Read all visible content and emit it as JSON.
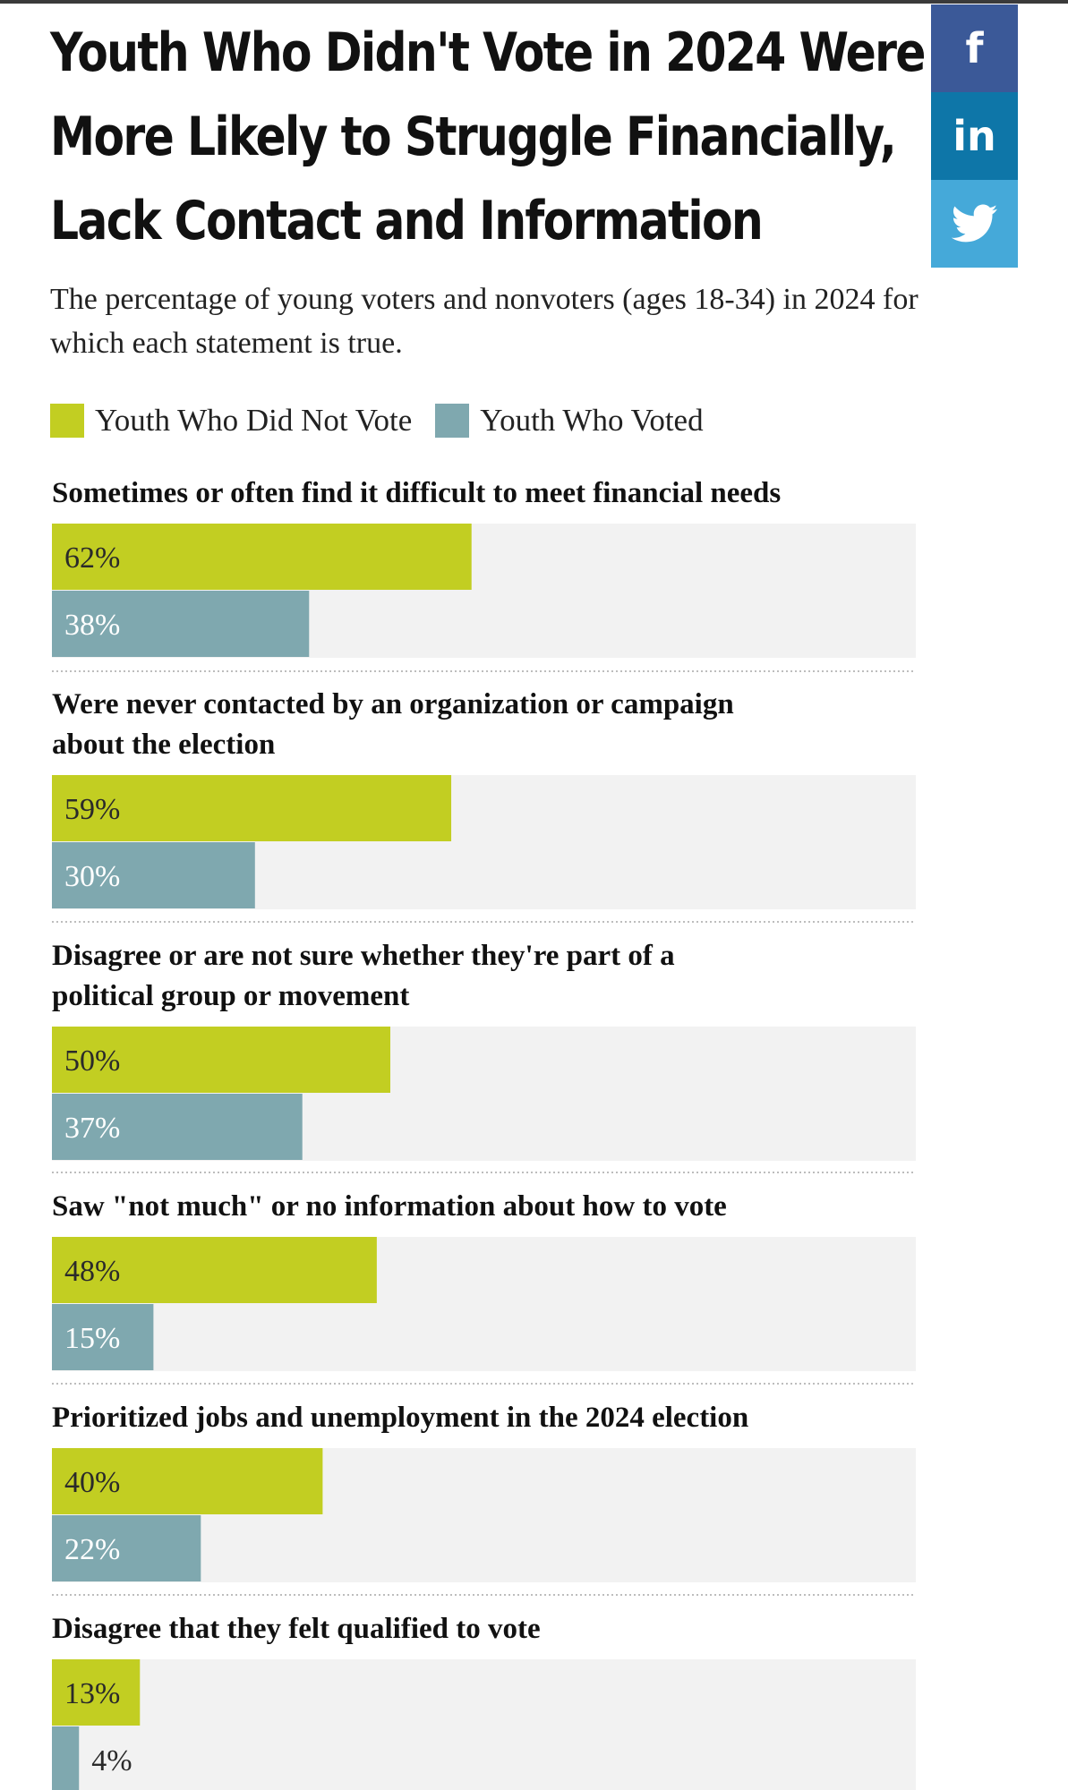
{
  "title": "Youth Who Didn't Vote in 2024 Were More Likely to Struggle Financially, Lack Contact and Information",
  "subtitle": "The percentage of young voters and nonvoters (ages 18-34) in 2024 for which each statement is true.",
  "colors": {
    "nonvoter": "#c2ce22",
    "voter": "#7fa8af",
    "track": "#f2f2f2",
    "divider": "#bdbdbd"
  },
  "social": {
    "facebook_glyph": "f",
    "linkedin_glyph": "in",
    "twitter_icon": "twitter-bird-icon"
  },
  "chart_data": {
    "type": "bar",
    "orientation": "horizontal",
    "title": "Youth Who Didn't Vote in 2024 Were More Likely to Struggle Financially, Lack Contact and Information",
    "subtitle": "The percentage of young voters and nonvoters (ages 18-34) in 2024 for which each statement is true.",
    "legend_position": "top-left",
    "xlim": [
      0,
      100
    ],
    "unit": "%",
    "categories": [
      "Sometimes or often find it difficult to meet financial needs",
      "Were never contacted by an organization or campaign about the election",
      "Disagree or are not sure whether they're part of a political group or movement",
      "Saw \"not much\" or no information about how to vote",
      "Prioritized jobs and unemployment in the 2024 election",
      "Disagree that they felt qualified to vote"
    ],
    "series": [
      {
        "name": "Youth Who Did Not Vote",
        "values": [
          62,
          59,
          50,
          48,
          40,
          13
        ]
      },
      {
        "name": "Youth Who Voted",
        "values": [
          38,
          30,
          37,
          15,
          22,
          4
        ]
      }
    ]
  }
}
